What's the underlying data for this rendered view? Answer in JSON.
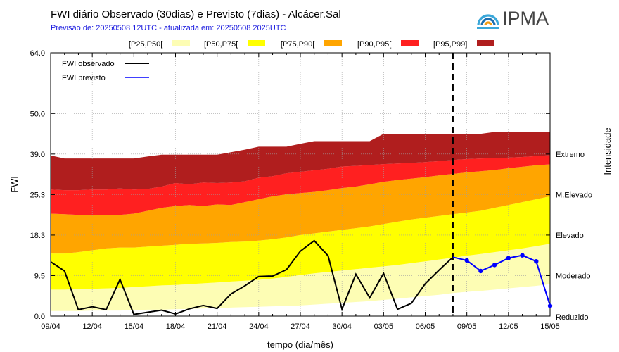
{
  "header": {
    "title": "FWI diário Observado (30dias) e Previsto (7dias) - Alcácer.Sal",
    "subtitle": "Previsão de: 20250508 12UTC   -  atualizada em: 20250508 2025UTC"
  },
  "logo": {
    "text": "IPMA",
    "colors": [
      "#3aa7d9",
      "#1e6fb0",
      "#f39c12"
    ]
  },
  "chart_data": {
    "type": "area",
    "xlabel": "tempo (dia/mês)",
    "ylabel": "FWI",
    "right_label": "Intensidade",
    "x_tick_labels": [
      "09/04",
      "12/04",
      "15/04",
      "18/04",
      "21/04",
      "24/04",
      "27/04",
      "30/04",
      "03/05",
      "06/05",
      "09/05",
      "12/05",
      "15/05"
    ],
    "x_tick_index": [
      0,
      3,
      6,
      9,
      12,
      15,
      18,
      21,
      24,
      27,
      30,
      33,
      36
    ],
    "y_ticks": [
      0.0,
      9.5,
      18.3,
      25.3,
      39.0,
      50.0,
      64.0
    ],
    "y_tick_labels": [
      "0.0",
      "9.5",
      "18.3",
      "25.3",
      "39.0",
      "50.0",
      "64.0"
    ],
    "y_range_piecewise": [
      [
        0.0,
        0
      ],
      [
        9.5,
        1
      ],
      [
        18.3,
        2
      ],
      [
        25.3,
        3
      ],
      [
        39.0,
        4
      ],
      [
        50.0,
        5
      ],
      [
        64.0,
        6.5
      ]
    ],
    "grid": true,
    "forecast_start_index": 29,
    "intensity_classes": [
      {
        "label": "Reduzido",
        "value": 0.0
      },
      {
        "label": "Moderado",
        "value": 9.5
      },
      {
        "label": "Elevado",
        "value": 18.3
      },
      {
        "label": "M.Elevado",
        "value": 25.3
      },
      {
        "label": "Extremo",
        "value": 39.0
      }
    ],
    "legend_bands": [
      {
        "name": "[P25,P50[",
        "color": "#fdfdb4"
      },
      {
        "name": "[P50,P75[",
        "color": "#ffff00"
      },
      {
        "name": "[P75,P90[",
        "color": "#ffa500"
      },
      {
        "name": "[P90,P95[",
        "color": "#ff2020"
      },
      {
        "name": "[P95,P99]",
        "color": "#b01e1e"
      }
    ],
    "lines_legend": [
      {
        "name": "FWI observado",
        "color": "#000000"
      },
      {
        "name": "FWI previsto",
        "color": "#0000ff"
      }
    ],
    "percentiles": {
      "p25": [
        1.2,
        1.2,
        1.2,
        1.3,
        1.3,
        1.3,
        1.4,
        1.5,
        1.5,
        1.6,
        1.7,
        1.8,
        1.9,
        2.0,
        2.1,
        2.2,
        2.3,
        2.4,
        2.5,
        2.7,
        2.9,
        3.1,
        3.3,
        3.5,
        3.8,
        4.1,
        4.4,
        4.7,
        5.0,
        5.4,
        5.7,
        5.9,
        6.2,
        6.5,
        6.8,
        7.1,
        7.5
      ],
      "p50": [
        6.2,
        6.2,
        6.3,
        6.4,
        6.5,
        6.6,
        6.8,
        7.0,
        7.2,
        7.3,
        7.5,
        7.7,
        7.9,
        8.1,
        8.3,
        8.5,
        8.8,
        9.2,
        9.6,
        10.0,
        10.3,
        10.6,
        10.9,
        11.2,
        11.5,
        11.8,
        12.2,
        12.6,
        13.0,
        13.4,
        13.8,
        14.2,
        14.6,
        15.0,
        15.4,
        15.9,
        16.4
      ],
      "p75": [
        14.3,
        14.3,
        14.6,
        15.0,
        15.4,
        15.6,
        15.6,
        15.8,
        16.0,
        16.2,
        16.4,
        16.5,
        16.6,
        16.8,
        16.9,
        17.1,
        17.4,
        17.8,
        18.3,
        18.6,
        18.9,
        19.2,
        19.5,
        19.8,
        20.2,
        20.6,
        21.0,
        21.3,
        21.6,
        21.9,
        22.2,
        22.5,
        23.0,
        23.5,
        24.0,
        24.5,
        25.0
      ],
      "p90": [
        22.0,
        21.9,
        21.8,
        21.8,
        21.8,
        21.8,
        22.0,
        22.5,
        23.0,
        23.3,
        23.5,
        23.3,
        23.6,
        23.5,
        24.0,
        24.5,
        25.0,
        25.4,
        25.8,
        26.2,
        26.8,
        27.5,
        28.0,
        28.8,
        29.6,
        30.2,
        30.7,
        31.2,
        31.8,
        32.3,
        32.8,
        33.2,
        33.6,
        34.2,
        34.7,
        35.2,
        35.5
      ],
      "p95": [
        27.0,
        26.8,
        26.8,
        27.0,
        27.0,
        27.4,
        27.0,
        27.2,
        28.0,
        29.2,
        28.8,
        29.4,
        29.2,
        29.4,
        29.8,
        31.0,
        31.5,
        32.5,
        33.0,
        33.5,
        34.0,
        34.8,
        35.0,
        35.3,
        35.6,
        35.8,
        36.0,
        36.3,
        36.6,
        37.0,
        37.3,
        37.5,
        37.6,
        37.8,
        38.0,
        38.3,
        38.6
      ],
      "p99": [
        38.5,
        37.5,
        37.5,
        37.5,
        37.5,
        37.5,
        37.5,
        38.2,
        38.8,
        38.8,
        38.8,
        38.8,
        38.8,
        39.5,
        40.2,
        41.0,
        41.0,
        41.0,
        41.8,
        42.5,
        42.5,
        42.5,
        42.5,
        42.5,
        44.5,
        44.5,
        44.5,
        44.5,
        44.5,
        44.5,
        44.5,
        44.5,
        45.0,
        45.0,
        45.0,
        45.0,
        45.0
      ]
    },
    "observed": {
      "start_index": 0,
      "values": [
        12.5,
        10.5,
        1.5,
        2.2,
        1.5,
        8.6,
        0.4,
        0.9,
        1.4,
        0.5,
        1.7,
        2.5,
        1.8,
        5.2,
        7.1,
        9.3,
        9.4,
        10.8,
        14.8,
        17.1,
        13.8,
        1.6,
        9.8,
        4.3,
        10.0,
        1.6,
        3.0,
        7.6,
        10.7,
        13.5
      ]
    },
    "forecast": {
      "start_index": 29,
      "values": [
        13.5,
        12.8,
        10.5,
        11.8,
        13.3,
        13.9,
        12.6,
        2.4
      ]
    }
  }
}
